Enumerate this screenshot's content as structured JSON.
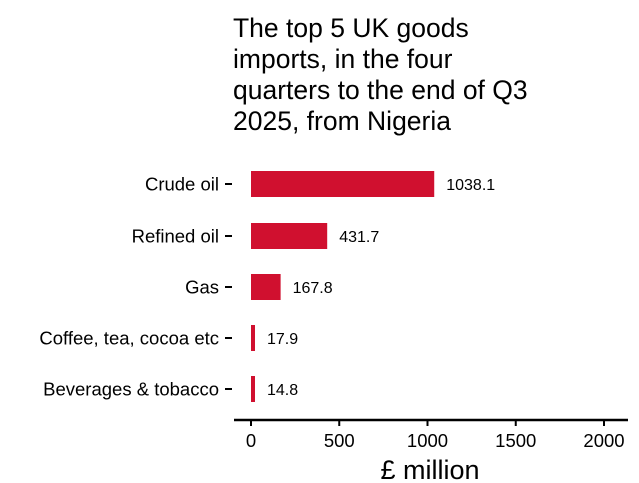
{
  "chart_data": {
    "type": "bar",
    "orientation": "horizontal",
    "title": "The top 5 UK goods imports, in the four quarters to the end of Q3 2025, from Nigeria",
    "title_lines": [
      "The top 5 UK goods",
      "imports, in the four",
      "quarters to the end of Q3",
      "2025, from Nigeria"
    ],
    "categories": [
      "Crude oil",
      "Refined oil",
      "Gas",
      "Coffee, tea, cocoa etc",
      "Beverages & tobacco"
    ],
    "values": [
      1038.1,
      431.7,
      167.8,
      17.9,
      14.8
    ],
    "value_labels": [
      "1038.1",
      "431.7",
      "167.8",
      "17.9",
      "14.8"
    ],
    "xlabel": "£ million",
    "ylabel": "",
    "xlim": [
      0,
      2000
    ],
    "x_ticks": [
      0,
      500,
      1000,
      1500,
      2000
    ],
    "x_tick_labels": [
      "0",
      "500",
      "1000",
      "1500",
      "2000"
    ],
    "grid": false,
    "legend": "none",
    "bar_color": "#d0102f"
  }
}
